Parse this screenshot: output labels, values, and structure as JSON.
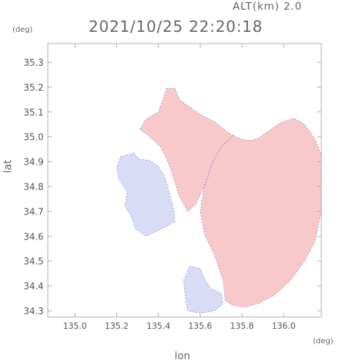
{
  "header": {
    "altitude": "ALT(km) 2.0",
    "datetime": "2021/10/25 22:20:18"
  },
  "axes": {
    "y_unit": "(deg)",
    "x_unit": "(deg)",
    "y_label": "lat",
    "x_label": "lon",
    "x_range": [
      134.87,
      136.18
    ],
    "y_range": [
      34.275,
      35.375
    ],
    "x_ticks": [
      {
        "value": 135.0,
        "label": "135.0"
      },
      {
        "value": 135.2,
        "label": "135.2"
      },
      {
        "value": 135.4,
        "label": "135.4"
      },
      {
        "value": 135.6,
        "label": "135.6"
      },
      {
        "value": 135.8,
        "label": "135.8"
      },
      {
        "value": 136.0,
        "label": "136.0"
      }
    ],
    "y_ticks": [
      {
        "value": 34.3,
        "label": "34.3"
      },
      {
        "value": 34.4,
        "label": "34.4"
      },
      {
        "value": 34.5,
        "label": "34.5"
      },
      {
        "value": 34.6,
        "label": "34.6"
      },
      {
        "value": 34.7,
        "label": "34.7"
      },
      {
        "value": 34.8,
        "label": "34.8"
      },
      {
        "value": 34.9,
        "label": "34.9"
      },
      {
        "value": 35.0,
        "label": "35.0"
      },
      {
        "value": 35.1,
        "label": "35.1"
      },
      {
        "value": 35.2,
        "label": "35.2"
      },
      {
        "value": 35.3,
        "label": "35.3"
      }
    ]
  },
  "colors": {
    "receding": "#f7c9cb",
    "receding_strong": "#f3b3b8",
    "approaching": "#d9dcf5",
    "approaching_edge": "#3a3ad0",
    "axis": "#aaaaaa"
  },
  "echo_regions": [
    {
      "name": "east-red-region",
      "color": "receding",
      "points": [
        [
          135.76,
          35.005
        ],
        [
          135.8,
          34.99
        ],
        [
          135.84,
          34.985
        ],
        [
          135.88,
          34.995
        ],
        [
          135.94,
          35.03
        ],
        [
          135.98,
          35.055
        ],
        [
          136.05,
          35.075
        ],
        [
          136.1,
          35.05
        ],
        [
          136.15,
          34.99
        ],
        [
          136.18,
          34.93
        ],
        [
          136.18,
          34.7
        ],
        [
          136.15,
          34.58
        ],
        [
          136.1,
          34.5
        ],
        [
          136.03,
          34.42
        ],
        [
          135.95,
          34.36
        ],
        [
          135.88,
          34.33
        ],
        [
          135.82,
          34.315
        ],
        [
          135.76,
          34.32
        ],
        [
          135.72,
          34.34
        ],
        [
          135.71,
          34.42
        ],
        [
          135.67,
          34.52
        ],
        [
          135.62,
          34.61
        ],
        [
          135.6,
          34.7
        ],
        [
          135.62,
          34.8
        ],
        [
          135.66,
          34.9
        ],
        [
          135.7,
          34.96
        ]
      ]
    },
    {
      "name": "north-red-region",
      "color": "receding",
      "points": [
        [
          135.44,
          35.195
        ],
        [
          135.48,
          35.195
        ],
        [
          135.5,
          35.15
        ],
        [
          135.55,
          35.12
        ],
        [
          135.6,
          35.09
        ],
        [
          135.67,
          35.06
        ],
        [
          135.73,
          35.02
        ],
        [
          135.76,
          35.005
        ],
        [
          135.7,
          34.96
        ],
        [
          135.66,
          34.9
        ],
        [
          135.62,
          34.8
        ],
        [
          135.58,
          34.73
        ],
        [
          135.54,
          34.7
        ],
        [
          135.5,
          34.76
        ],
        [
          135.47,
          34.84
        ],
        [
          135.44,
          34.91
        ],
        [
          135.41,
          34.96
        ],
        [
          135.36,
          35.0
        ],
        [
          135.31,
          35.03
        ],
        [
          135.34,
          35.07
        ],
        [
          135.4,
          35.1
        ]
      ]
    },
    {
      "name": "west-blue-region",
      "color": "approaching",
      "points": [
        [
          135.22,
          34.92
        ],
        [
          135.28,
          34.935
        ],
        [
          135.31,
          34.91
        ],
        [
          135.36,
          34.905
        ],
        [
          135.4,
          34.88
        ],
        [
          135.43,
          34.84
        ],
        [
          135.45,
          34.78
        ],
        [
          135.47,
          34.72
        ],
        [
          135.48,
          34.66
        ],
        [
          135.44,
          34.64
        ],
        [
          135.39,
          34.62
        ],
        [
          135.34,
          34.6
        ],
        [
          135.29,
          34.63
        ],
        [
          135.27,
          34.68
        ],
        [
          135.24,
          34.72
        ],
        [
          135.25,
          34.78
        ],
        [
          135.21,
          34.83
        ],
        [
          135.2,
          34.88
        ]
      ]
    },
    {
      "name": "south-blue-region",
      "color": "approaching",
      "points": [
        [
          135.55,
          34.48
        ],
        [
          135.6,
          34.47
        ],
        [
          135.62,
          34.43
        ],
        [
          135.65,
          34.39
        ],
        [
          135.7,
          34.37
        ],
        [
          135.71,
          34.33
        ],
        [
          135.67,
          34.3
        ],
        [
          135.6,
          34.29
        ],
        [
          135.54,
          34.3
        ],
        [
          135.53,
          34.35
        ],
        [
          135.52,
          34.42
        ]
      ]
    }
  ]
}
